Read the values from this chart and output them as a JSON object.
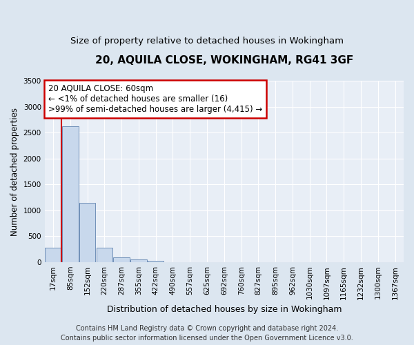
{
  "title1": "20, AQUILA CLOSE, WOKINGHAM, RG41 3GF",
  "title2": "Size of property relative to detached houses in Wokingham",
  "xlabel": "Distribution of detached houses by size in Wokingham",
  "ylabel": "Number of detached properties",
  "bin_labels": [
    "17sqm",
    "85sqm",
    "152sqm",
    "220sqm",
    "287sqm",
    "355sqm",
    "422sqm",
    "490sqm",
    "557sqm",
    "625sqm",
    "692sqm",
    "760sqm",
    "827sqm",
    "895sqm",
    "962sqm",
    "1030sqm",
    "1097sqm",
    "1165sqm",
    "1232sqm",
    "1300sqm",
    "1367sqm"
  ],
  "bar_heights": [
    280,
    2620,
    1150,
    280,
    100,
    48,
    30,
    0,
    0,
    0,
    0,
    0,
    0,
    0,
    0,
    0,
    0,
    0,
    0,
    0,
    0
  ],
  "bar_color": "#c8d8ec",
  "bar_edge_color": "#7090b8",
  "marker_color": "#cc0000",
  "ylim": [
    0,
    3500
  ],
  "yticks": [
    0,
    500,
    1000,
    1500,
    2000,
    2500,
    3000,
    3500
  ],
  "annotation_lines": [
    "20 AQUILA CLOSE: 60sqm",
    "← <1% of detached houses are smaller (16)",
    ">99% of semi-detached houses are larger (4,415) →"
  ],
  "annotation_box_color": "#ffffff",
  "annotation_box_edge": "#cc0000",
  "footer1": "Contains HM Land Registry data © Crown copyright and database right 2024.",
  "footer2": "Contains public sector information licensed under the Open Government Licence v3.0.",
  "background_color": "#dce6f0",
  "plot_bg_color": "#e8eef6",
  "grid_color": "#ffffff",
  "title1_fontsize": 11,
  "title2_fontsize": 9.5,
  "tick_fontsize": 7.5,
  "ylabel_fontsize": 8.5,
  "xlabel_fontsize": 9,
  "footer_fontsize": 7,
  "annotation_fontsize": 8.5
}
